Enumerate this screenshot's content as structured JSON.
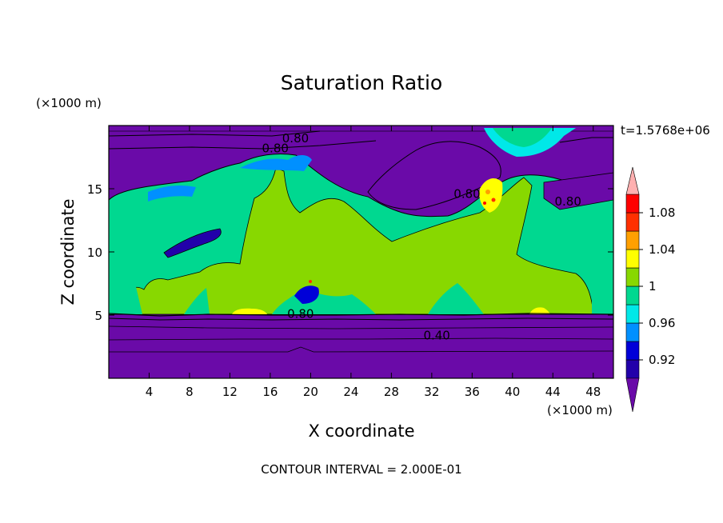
{
  "chart_data": {
    "type": "heatmap",
    "title": "Saturation Ratio",
    "xlabel": "X coordinate",
    "ylabel": "Z coordinate",
    "x_units": "(×1000 m)",
    "y_units": "(×1000 m)",
    "xlim": [
      0,
      50
    ],
    "ylim": [
      0,
      20
    ],
    "x_ticks": [
      4,
      8,
      12,
      16,
      20,
      24,
      28,
      32,
      36,
      40,
      44,
      48
    ],
    "y_ticks": [
      5,
      10,
      15
    ],
    "time_label": "t=1.5768e+06",
    "footer": "CONTOUR INTERVAL = 2.000E-01",
    "colorbar": {
      "levels": [
        0.9,
        0.92,
        0.94,
        0.96,
        0.98,
        1.0,
        1.02,
        1.04,
        1.06,
        1.08,
        1.1
      ],
      "tick_labels": [
        "0.92",
        "0.96",
        "1",
        "1.04",
        "1.08"
      ],
      "tick_values": [
        0.92,
        0.96,
        1.0,
        1.04,
        1.08
      ],
      "colors": [
        "#6a0aa8",
        "#2200aa",
        "#0000d8",
        "#0090ff",
        "#00e8e8",
        "#00d890",
        "#88d800",
        "#ffff00",
        "#ffa000",
        "#ff3000",
        "#ff0000",
        "#ffb0b0"
      ]
    },
    "contour_labels": [
      {
        "text": "0.80",
        "x": 18.5,
        "z": 19.0
      },
      {
        "text": "0.80",
        "x": 16.5,
        "z": 18.2
      },
      {
        "text": "0.80",
        "x": 35.5,
        "z": 14.6
      },
      {
        "text": "0.80",
        "x": 45.5,
        "z": 14.0
      },
      {
        "text": "0.80",
        "x": 19.0,
        "z": 5.1
      },
      {
        "text": "0.40",
        "x": 32.5,
        "z": 3.4
      }
    ]
  },
  "colors": {
    "dry": "#6a0aa8",
    "near_sat": "#00d890",
    "saturated": "#88d800",
    "blue": "#0090ff",
    "cyan": "#00e8e8"
  }
}
